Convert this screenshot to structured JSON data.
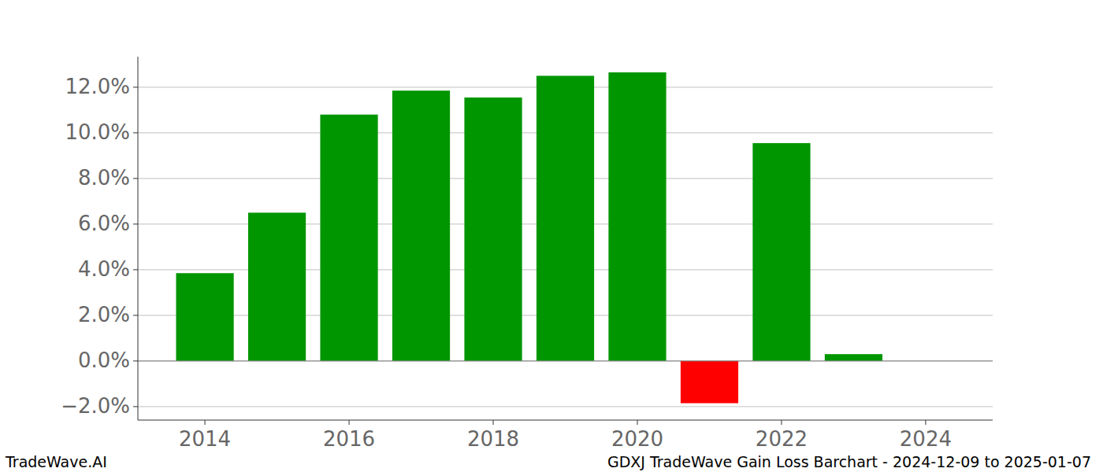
{
  "chart_data": {
    "type": "bar",
    "title": "GDXJ TradeWave Gain Loss Barchart - 2024-12-09 to 2025-01-07",
    "annotations": [
      "TradeWave.AI"
    ],
    "x": [
      2014,
      2015,
      2016,
      2017,
      2018,
      2019,
      2020,
      2021,
      2022,
      2023
    ],
    "values": [
      3.85,
      6.5,
      10.8,
      11.85,
      11.55,
      12.5,
      12.65,
      -1.85,
      9.55,
      0.3
    ],
    "colors": [
      "#009600",
      "#009600",
      "#009600",
      "#009600",
      "#009600",
      "#009600",
      "#009600",
      "#ff0000",
      "#009600",
      "#009600"
    ],
    "xlim": [
      2013.07,
      2024.93
    ],
    "xticks": [
      2014,
      2016,
      2018,
      2020,
      2022,
      2024
    ],
    "ylim": [
      -2.59,
      13.34
    ],
    "yticks": [
      {
        "value": -2,
        "label": "−2.0%"
      },
      {
        "value": 0,
        "label": "0.0%"
      },
      {
        "value": 2,
        "label": "2.0%"
      },
      {
        "value": 4,
        "label": "4.0%"
      },
      {
        "value": 6,
        "label": "6.0%"
      },
      {
        "value": 8,
        "label": "8.0%"
      },
      {
        "value": 10,
        "label": "10.0%"
      },
      {
        "value": 12,
        "label": "12.0%"
      }
    ],
    "grid": true
  }
}
